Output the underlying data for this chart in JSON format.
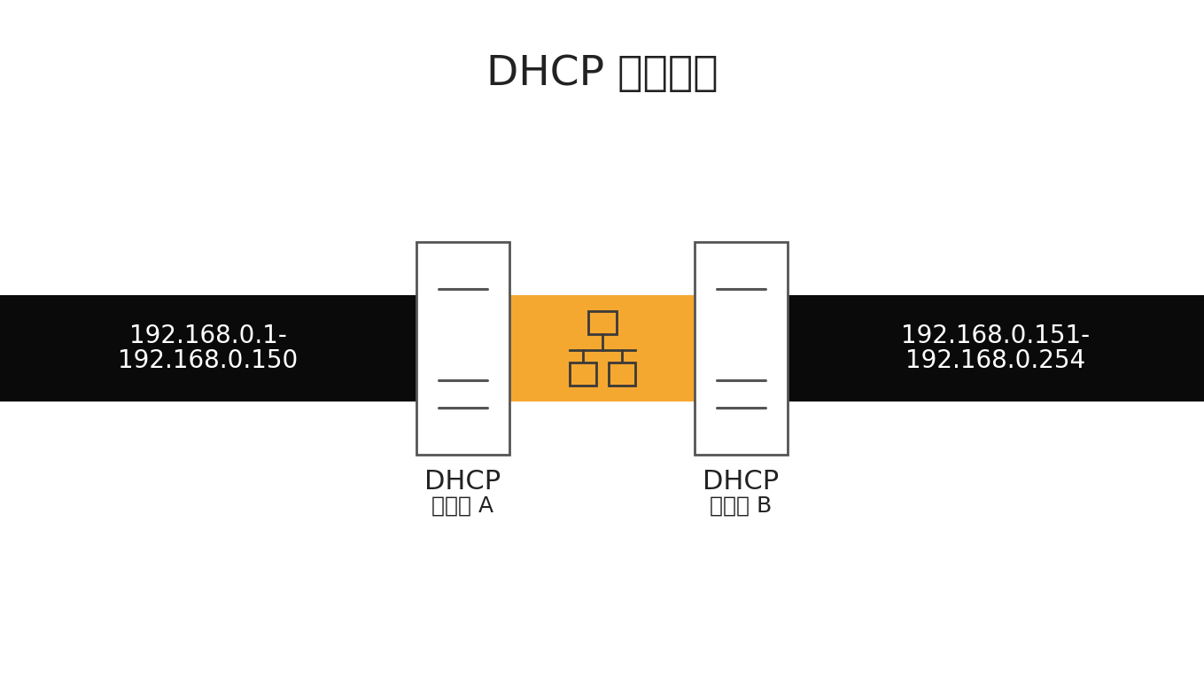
{
  "title": "DHCP 分割範圍",
  "title_fontsize": 34,
  "bg_color": "#ffffff",
  "black_band_color": "#0a0a0a",
  "orange_color": "#F5A830",
  "server_box_color": "#ffffff",
  "server_border_color": "#555555",
  "text_color_white": "#ffffff",
  "text_color_dark": "#222222",
  "left_ip_line1": "192.168.0.1-",
  "left_ip_line2": "192.168.0.150",
  "right_ip_line1": "192.168.0.151-",
  "right_ip_line2": "192.168.0.254",
  "server_a_label1": "DHCP",
  "server_a_label2": "伺服器 A",
  "server_b_label1": "DHCP",
  "server_b_label2": "伺服器 B",
  "ip_fontsize": 20,
  "label_fontsize": 22,
  "sublabel_fontsize": 18,
  "switch_icon_color": "#3a3a3a"
}
